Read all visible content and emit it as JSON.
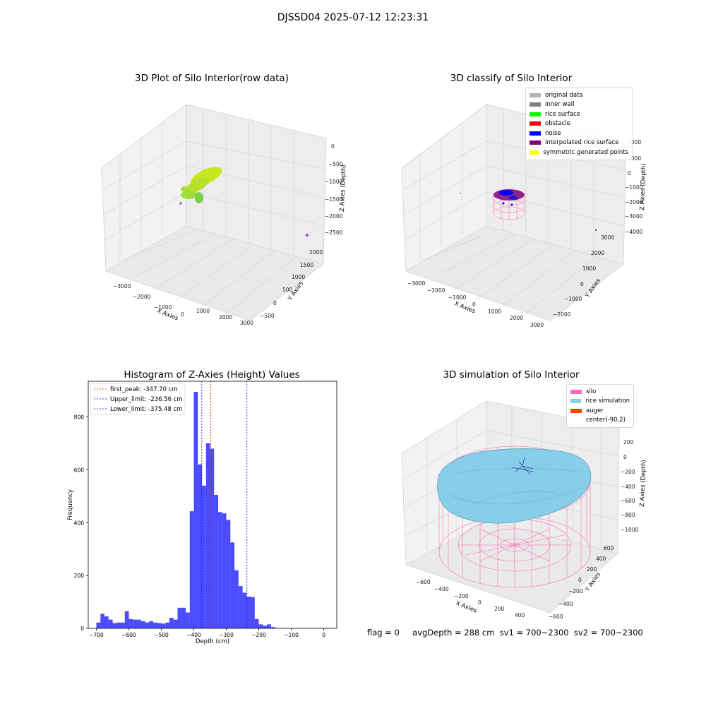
{
  "figure": {
    "suptitle": "DJSSD04 2025-07-12 12:23:31",
    "footer": {
      "flag": "flag = 0",
      "stats": "avgDepth = 288 cm  sv1 = 700~2300  sv2 = 700~2300"
    }
  },
  "panels": {
    "raw": {
      "title": "3D Plot of Silo Interior(row data)",
      "xlabel": "X Axies",
      "ylabel": "Y Axies",
      "zlabel": "Z Axies (Depth)",
      "xticks": [
        "−3000",
        "−2000",
        "−1000",
        "0",
        "1000",
        "2000",
        "3000"
      ],
      "yticks": [
        "−500",
        "0",
        "500",
        "1000",
        "1500",
        "2000"
      ],
      "zticks": [
        "0",
        "−500",
        "−1000",
        "−1500",
        "−2000",
        "−2500"
      ]
    },
    "classify": {
      "title": "3D classify of Silo Interior",
      "xlabel": "X Axies",
      "ylabel": "Y Axies",
      "zlabel": "Z Axies (Depth)",
      "xticks": [
        "−3000",
        "−2000",
        "−1000",
        "0",
        "1000",
        "2000",
        "3000"
      ],
      "yticks": [
        "−2000",
        "−1000",
        "0",
        "1000",
        "2000",
        "3000"
      ],
      "zticks": [
        "2000",
        "1000",
        "0",
        "−1000",
        "−2000",
        "−3000",
        "−4000"
      ],
      "legend": [
        {
          "label": "original data",
          "color": "#b3b3b3"
        },
        {
          "label": "inner wall",
          "color": "#808080"
        },
        {
          "label": "rice surface",
          "color": "#00ff00"
        },
        {
          "label": "obstacle",
          "color": "#ff0000"
        },
        {
          "label": "noise",
          "color": "#0000ff"
        },
        {
          "label": "interpolated rice surface",
          "color": "#800080"
        },
        {
          "label": "symmetric generated points",
          "color": "#ffff00"
        }
      ]
    },
    "simulation": {
      "title": "3D simulation of Silo Interior",
      "xlabel": "X Axies",
      "ylabel": "Y Axies",
      "zlabel": "Z Axies (Depth)",
      "xticks": [
        "−600",
        "−400",
        "−200",
        "0",
        "200",
        "400"
      ],
      "yticks": [
        "−600",
        "−400",
        "−200",
        "0",
        "200",
        "400",
        "600"
      ],
      "zticks": [
        "200",
        "0",
        "−200",
        "−400",
        "−600",
        "−800",
        "−1000"
      ],
      "legend": [
        {
          "label": "silo",
          "color": "#ff69b4"
        },
        {
          "label": "rice simulation",
          "color": "#87ceeb"
        },
        {
          "label": "auger",
          "color": "#ff4500"
        },
        {
          "label": "center(-90,2)",
          "color": "#ffffff"
        }
      ]
    }
  },
  "chart_data": {
    "type": "bar",
    "title": "Histogram of Z-Axies (Height) Values",
    "xlabel": "Depth (cm)",
    "ylabel": "Frequency",
    "xlim": [
      -725,
      40
    ],
    "ylim": [
      0,
      935
    ],
    "xticks": [
      -700,
      -600,
      -500,
      -400,
      -300,
      -200,
      -100,
      0
    ],
    "yticks": [
      0,
      200,
      400,
      600,
      800
    ],
    "bin_width": 12.5,
    "bin_start": -700,
    "values": [
      22,
      55,
      45,
      33,
      20,
      22,
      22,
      65,
      35,
      33,
      33,
      27,
      22,
      27,
      22,
      20,
      18,
      22,
      40,
      33,
      78,
      78,
      60,
      443,
      895,
      620,
      540,
      700,
      680,
      505,
      440,
      435,
      410,
      325,
      220,
      160,
      135,
      120,
      118,
      35,
      15,
      10,
      15,
      5
    ],
    "color": "#0000ff",
    "vlines": [
      {
        "label": "first_peak: -347.70 cm",
        "x": -347.7,
        "color": "#ff0000"
      },
      {
        "label": "Upper_limit: -236.56 cm",
        "x": -236.56,
        "color": "#0000ff"
      },
      {
        "label": "Lower_limit: -375.48 cm",
        "x": -375.48,
        "color": "#0000ff"
      }
    ],
    "legend_position": "upper left"
  }
}
